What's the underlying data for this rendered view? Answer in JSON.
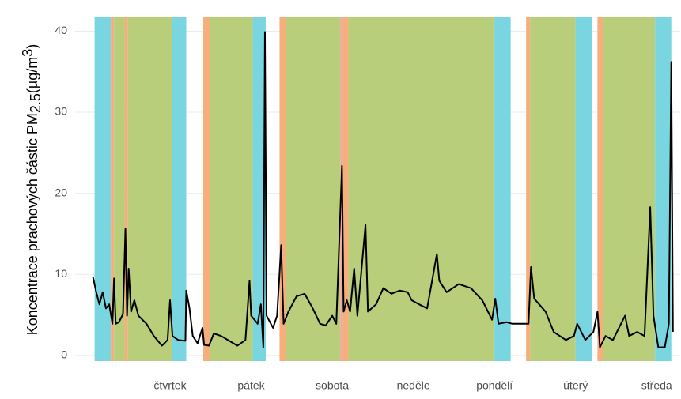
{
  "chart_data": {
    "type": "line",
    "ylabel": {
      "main": "Koncentrace prachových částic  PM",
      "sub": "2.5",
      "unit": "(µg/m",
      "sup": "3",
      "end": ")"
    },
    "xlim": [
      -0.17,
      7.29
    ],
    "ylim": [
      -0.7,
      41.7
    ],
    "xticks": [
      {
        "value": 1,
        "label": "čtvrtek"
      },
      {
        "value": 2,
        "label": "pátek"
      },
      {
        "value": 3,
        "label": "sobota"
      },
      {
        "value": 4,
        "label": "neděle"
      },
      {
        "value": 5,
        "label": "pondělí"
      },
      {
        "value": 6,
        "label": "úterý"
      },
      {
        "value": 7,
        "label": "středa"
      }
    ],
    "yticks": [
      0,
      10,
      20,
      30,
      40
    ],
    "grid": true,
    "bands": [
      {
        "x0": 0.07,
        "x1": 0.27,
        "color": "#79d6e0"
      },
      {
        "x0": 0.27,
        "x1": 0.31,
        "color": "#f5ae7c"
      },
      {
        "x0": 0.31,
        "x1": 0.44,
        "color": "#b8ce7a"
      },
      {
        "x0": 0.44,
        "x1": 0.48,
        "color": "#f5ae7c"
      },
      {
        "x0": 0.48,
        "x1": 1.02,
        "color": "#b8ce7a"
      },
      {
        "x0": 1.02,
        "x1": 1.2,
        "color": "#79d6e0"
      },
      {
        "x0": 1.41,
        "x1": 1.49,
        "color": "#f5ae7c"
      },
      {
        "x0": 1.49,
        "x1": 2.02,
        "color": "#b8ce7a"
      },
      {
        "x0": 2.02,
        "x1": 2.18,
        "color": "#79d6e0"
      },
      {
        "x0": 2.35,
        "x1": 2.43,
        "color": "#f5ae7c"
      },
      {
        "x0": 2.43,
        "x1": 3.1,
        "color": "#b8ce7a"
      },
      {
        "x0": 3.1,
        "x1": 3.13,
        "color": "#f2a6a0"
      },
      {
        "x0": 3.13,
        "x1": 3.2,
        "color": "#f5ae7c"
      },
      {
        "x0": 3.2,
        "x1": 5.0,
        "color": "#b8ce7a"
      },
      {
        "x0": 5.0,
        "x1": 5.2,
        "color": "#79d6e0"
      },
      {
        "x0": 5.39,
        "x1": 5.44,
        "color": "#f5ae7c"
      },
      {
        "x0": 5.44,
        "x1": 6.0,
        "color": "#b8ce7a"
      },
      {
        "x0": 6.0,
        "x1": 6.2,
        "color": "#79d6e0"
      },
      {
        "x0": 6.27,
        "x1": 6.34,
        "color": "#f5ae7c"
      },
      {
        "x0": 6.34,
        "x1": 6.98,
        "color": "#b8ce7a"
      },
      {
        "x0": 6.98,
        "x1": 7.18,
        "color": "#79d6e0"
      }
    ],
    "x": [
      0.05,
      0.09,
      0.13,
      0.17,
      0.21,
      0.25,
      0.29,
      0.31,
      0.33,
      0.37,
      0.42,
      0.45,
      0.47,
      0.49,
      0.52,
      0.56,
      0.61,
      0.71,
      0.8,
      0.9,
      0.97,
      1.0,
      1.03,
      1.1,
      1.19,
      1.2,
      1.24,
      1.28,
      1.34,
      1.4,
      1.42,
      1.48,
      1.54,
      1.63,
      1.73,
      1.83,
      1.93,
      1.98,
      2.0,
      2.08,
      2.12,
      2.15,
      2.17,
      2.19,
      2.27,
      2.32,
      2.37,
      2.4,
      2.46,
      2.56,
      2.66,
      2.76,
      2.85,
      2.92,
      3.0,
      3.05,
      3.12,
      3.14,
      3.18,
      3.22,
      3.27,
      3.31,
      3.41,
      3.44,
      3.54,
      3.63,
      3.73,
      3.83,
      3.93,
      3.98,
      4.07,
      4.17,
      4.29,
      4.32,
      4.41,
      4.56,
      4.71,
      4.85,
      4.97,
      5.01,
      5.05,
      5.15,
      5.22,
      5.34,
      5.42,
      5.45,
      5.49,
      5.63,
      5.73,
      5.88,
      5.98,
      6.02,
      6.12,
      6.22,
      6.27,
      6.3,
      6.37,
      6.46,
      6.61,
      6.66,
      6.76,
      6.85,
      6.92,
      6.96,
      7.02,
      7.1,
      7.15,
      7.18,
      7.2
    ],
    "series": [
      {
        "color": "#000000",
        "values": [
          9.7,
          7.8,
          6.3,
          7.8,
          5.8,
          6.3,
          3.9,
          9.5,
          3.9,
          4.1,
          5.1,
          15.6,
          4.9,
          10.7,
          5.4,
          6.8,
          4.9,
          3.9,
          2.4,
          1.2,
          1.9,
          6.8,
          2.4,
          1.9,
          1.8,
          8.0,
          5.8,
          2.4,
          1.5,
          3.4,
          1.3,
          1.2,
          2.7,
          2.4,
          1.8,
          1.2,
          1.9,
          9.2,
          4.9,
          3.9,
          6.3,
          1.0,
          39.9,
          4.9,
          3.4,
          4.9,
          13.6,
          3.9,
          5.4,
          7.3,
          7.6,
          5.8,
          3.9,
          3.7,
          4.9,
          3.9,
          23.4,
          5.4,
          6.8,
          5.4,
          10.7,
          4.9,
          16.1,
          5.4,
          6.3,
          8.3,
          7.6,
          8.0,
          7.8,
          6.8,
          6.3,
          5.8,
          12.5,
          9.2,
          7.8,
          8.8,
          8.3,
          6.8,
          4.4,
          7.0,
          3.9,
          4.1,
          3.9,
          3.9,
          3.9,
          10.9,
          7.0,
          5.4,
          2.9,
          1.9,
          2.4,
          3.9,
          1.9,
          2.9,
          5.4,
          1.0,
          2.4,
          1.9,
          4.9,
          2.4,
          2.9,
          2.4,
          18.3,
          4.9,
          1.0,
          1.0,
          3.9,
          36.2,
          2.9
        ]
      }
    ]
  }
}
